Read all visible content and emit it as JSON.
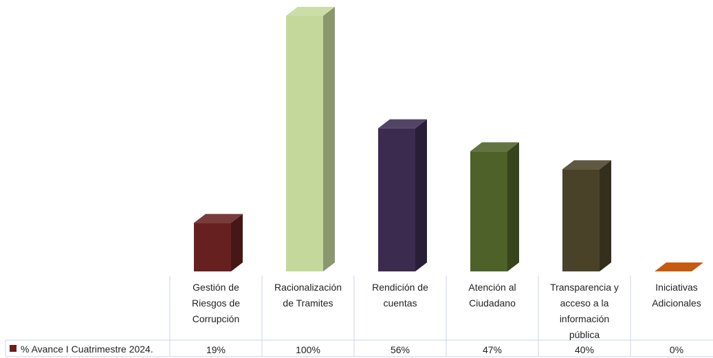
{
  "chart_data": {
    "type": "bar",
    "categories": [
      "Gestión de Riesgos de Corrupción",
      "Racionalización de Tramites",
      "Rendición de cuentas",
      "Atención al Ciudadano",
      "Transparencia y acceso a la información pública",
      "Iniciativas Adicionales"
    ],
    "category_lines": [
      [
        "Gestión de",
        "Riesgos de",
        "Corrupción"
      ],
      [
        "Racionalización",
        "de Tramites"
      ],
      [
        "Rendición de",
        "cuentas"
      ],
      [
        "Atención al",
        "Ciudadano"
      ],
      [
        "Transparencia y",
        "acceso a la",
        "información",
        "pública"
      ],
      [
        "Iniciativas",
        "Adicionales"
      ]
    ],
    "series": [
      {
        "name": "% Avance I Cuatrimestre 2024.",
        "values": [
          19,
          100,
          56,
          47,
          40,
          0
        ],
        "value_labels": [
          "19%",
          "100%",
          "56%",
          "47%",
          "40%",
          "0%"
        ],
        "color": "#6B1F1F"
      }
    ],
    "bar_colors": [
      "#66201F",
      "#C5D89B",
      "#3A2B4F",
      "#4E6128",
      "#4A4228",
      "#C55A11"
    ],
    "ylim": [
      0,
      100
    ],
    "grid": false,
    "legend": "data-table-left",
    "title": "",
    "xlabel": "",
    "ylabel": ""
  }
}
